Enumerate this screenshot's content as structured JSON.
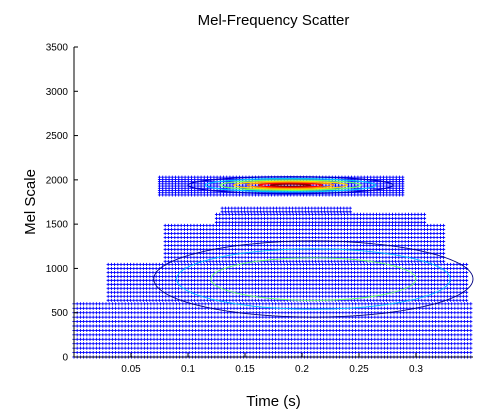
{
  "chart_data": {
    "type": "scatter",
    "title": "Mel-Frequency Scatter",
    "xlabel": "Time (s)",
    "ylabel": "Mel Scale",
    "xlim": [
      0,
      0.35
    ],
    "ylim": [
      0,
      3500
    ],
    "xticks": [
      0.05,
      0.1,
      0.15,
      0.2,
      0.25,
      0.3
    ],
    "xtick_labels": [
      "0.05",
      "0.1",
      "0.15",
      "0.2",
      "0.25",
      "0.3"
    ],
    "yticks": [
      0,
      500,
      1000,
      1500,
      2000,
      2500,
      3000,
      3500
    ],
    "ytick_labels": [
      "0",
      "500",
      "1000",
      "1500",
      "2000",
      "2500",
      "3000",
      "3500"
    ],
    "grid": false,
    "legend": "none",
    "series": [
      {
        "marker": "+",
        "color": "#0000ff",
        "point_bands": [
          {
            "x": [
              0.0,
              0.35
            ],
            "y": [
              0,
              620
            ],
            "dy": 50
          },
          {
            "x": [
              0.03,
              0.345
            ],
            "y": [
              640,
              1050
            ],
            "dy": 45
          },
          {
            "x": [
              0.08,
              0.325
            ],
            "y": [
              1080,
              1500
            ],
            "dy": 45
          },
          {
            "x": [
              0.125,
              0.31
            ],
            "y": [
              1520,
              1620
            ],
            "dy": 45
          },
          {
            "x": [
              0.13,
              0.245
            ],
            "y": [
              1640,
              1700
            ],
            "dy": 40
          },
          {
            "x": [
              0.075,
              0.29
            ],
            "y": [
              1830,
              2030
            ],
            "dy": 25
          }
        ]
      }
    ],
    "density_contours": [
      {
        "name": "upper-cluster",
        "center": [
          0.19,
          1940
        ],
        "levels": [
          {
            "rx": 0.09,
            "ry": 95,
            "color": "#0000cc"
          },
          {
            "rx": 0.075,
            "ry": 75,
            "color": "#00bfff"
          },
          {
            "rx": 0.062,
            "ry": 58,
            "color": "#66ff66"
          },
          {
            "rx": 0.05,
            "ry": 44,
            "color": "#ffd700"
          },
          {
            "rx": 0.038,
            "ry": 32,
            "color": "#ff8c00"
          },
          {
            "rx": 0.028,
            "ry": 22,
            "color": "#ff0000"
          },
          {
            "rx": 0.018,
            "ry": 12,
            "color": "#8b0000"
          }
        ]
      },
      {
        "name": "lower-cluster",
        "center": [
          0.21,
          880
        ],
        "levels": [
          {
            "rx": 0.14,
            "ry": 430,
            "color": "#000080"
          },
          {
            "rx": 0.12,
            "ry": 340,
            "color": "#00bfff"
          },
          {
            "rx": 0.09,
            "ry": 240,
            "color": "#66ff66"
          }
        ]
      }
    ]
  }
}
